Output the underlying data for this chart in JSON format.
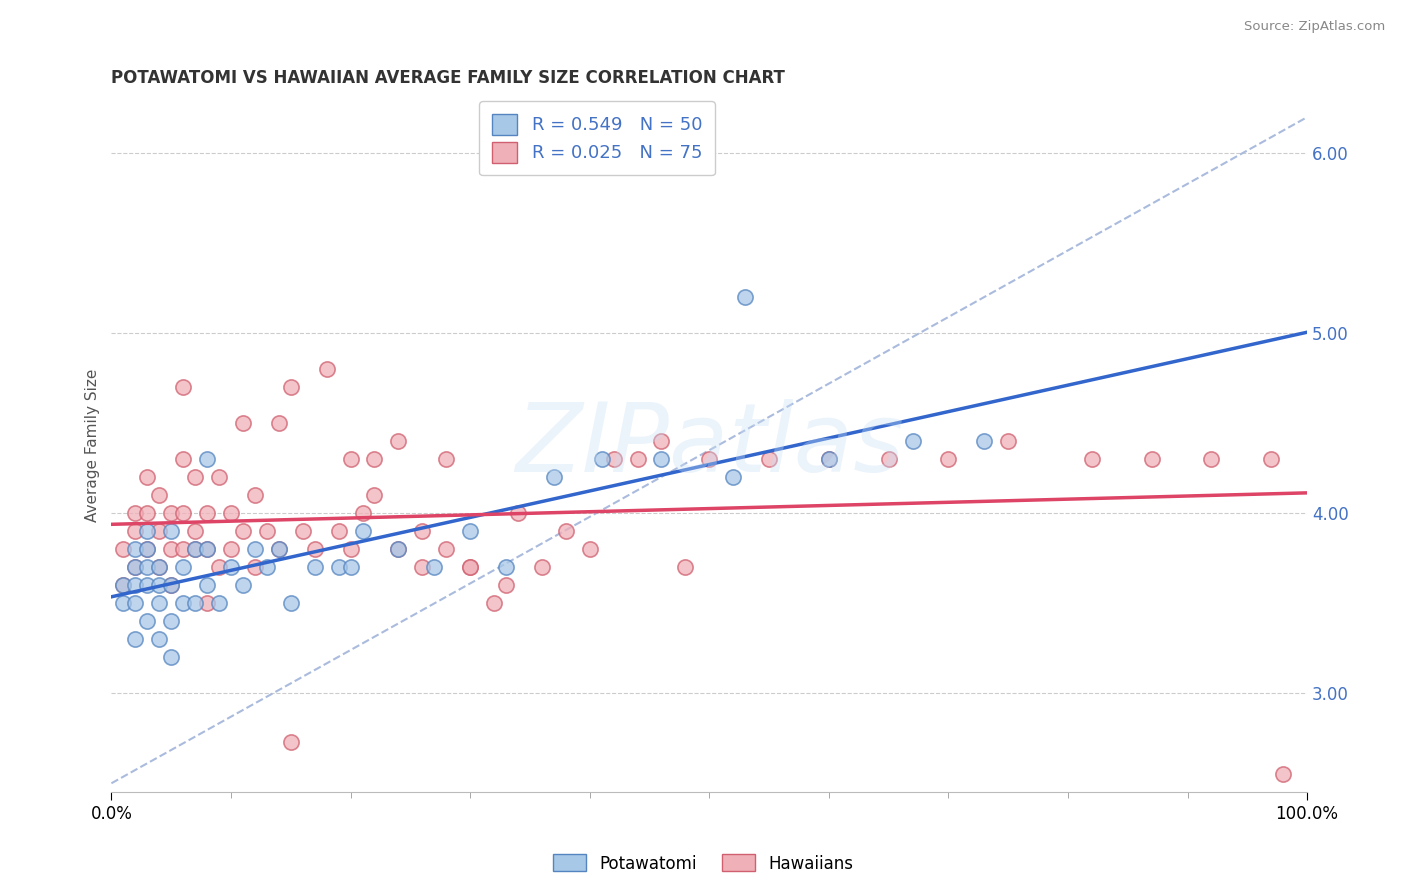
{
  "title": "POTAWATOMI VS HAWAIIAN AVERAGE FAMILY SIZE CORRELATION CHART",
  "source": "Source: ZipAtlas.com",
  "ylabel": "Average Family Size",
  "yticks": [
    3.0,
    4.0,
    5.0,
    6.0
  ],
  "ytick_labels": [
    "3.00",
    "4.00",
    "5.00",
    "6.00"
  ],
  "xlim": [
    0.0,
    1.0
  ],
  "ylim": [
    2.45,
    6.3
  ],
  "r_potawatomi": "0.549",
  "n_potawatomi": "50",
  "r_hawaiian": "0.025",
  "n_hawaiian": "75",
  "legend_labels": [
    "Potawatomi",
    "Hawaiians"
  ],
  "color_potawatomi_fill": "#a8c8e8",
  "color_potawatomi_edge": "#5585c0",
  "color_hawaiian_fill": "#f0b0b8",
  "color_hawaiian_edge": "#d06070",
  "color_trendline_potawatomi": "#3366cc",
  "color_trendline_hawaiian": "#dd4466",
  "color_diagonal": "#aabbdd",
  "color_grid": "#cccccc",
  "color_title": "#333333",
  "color_source": "#888888",
  "color_axis_blue": "#4472c4",
  "background_color": "#ffffff",
  "legend_patch_blue": "#a8c8e8",
  "legend_patch_pink": "#f0b0b8",
  "legend_patch_blue_edge": "#5585c0",
  "legend_patch_pink_edge": "#d06070",
  "potawatomi_x": [
    0.01,
    0.01,
    0.02,
    0.02,
    0.02,
    0.02,
    0.02,
    0.03,
    0.03,
    0.03,
    0.03,
    0.03,
    0.04,
    0.04,
    0.04,
    0.04,
    0.05,
    0.05,
    0.05,
    0.05,
    0.06,
    0.06,
    0.07,
    0.07,
    0.08,
    0.08,
    0.09,
    0.1,
    0.11,
    0.12,
    0.13,
    0.14,
    0.15,
    0.17,
    0.19,
    0.21,
    0.24,
    0.27,
    0.3,
    0.33,
    0.37,
    0.41,
    0.46,
    0.52,
    0.53,
    0.6,
    0.67,
    0.73,
    0.08,
    0.2
  ],
  "potawatomi_y": [
    3.5,
    3.6,
    3.3,
    3.5,
    3.6,
    3.7,
    3.8,
    3.4,
    3.6,
    3.7,
    3.8,
    3.9,
    3.3,
    3.5,
    3.6,
    3.7,
    3.2,
    3.4,
    3.6,
    3.9,
    3.5,
    3.7,
    3.5,
    3.8,
    3.6,
    3.8,
    3.5,
    3.7,
    3.6,
    3.8,
    3.7,
    3.8,
    3.5,
    3.7,
    3.7,
    3.9,
    3.8,
    3.7,
    3.9,
    3.7,
    4.2,
    4.3,
    4.3,
    4.2,
    5.2,
    4.3,
    4.4,
    4.4,
    4.3,
    3.7
  ],
  "hawaiian_x": [
    0.01,
    0.01,
    0.02,
    0.02,
    0.02,
    0.03,
    0.03,
    0.03,
    0.04,
    0.04,
    0.04,
    0.05,
    0.05,
    0.05,
    0.06,
    0.06,
    0.06,
    0.07,
    0.07,
    0.07,
    0.08,
    0.08,
    0.09,
    0.09,
    0.1,
    0.1,
    0.11,
    0.11,
    0.12,
    0.12,
    0.13,
    0.14,
    0.14,
    0.15,
    0.16,
    0.17,
    0.18,
    0.19,
    0.2,
    0.21,
    0.22,
    0.24,
    0.26,
    0.28,
    0.3,
    0.33,
    0.36,
    0.4,
    0.44,
    0.48,
    0.2,
    0.22,
    0.24,
    0.26,
    0.28,
    0.3,
    0.34,
    0.38,
    0.42,
    0.46,
    0.5,
    0.55,
    0.6,
    0.65,
    0.7,
    0.75,
    0.82,
    0.87,
    0.92,
    0.97,
    0.98,
    0.32,
    0.15,
    0.08,
    0.06
  ],
  "hawaiian_y": [
    3.6,
    3.8,
    3.7,
    3.9,
    4.0,
    3.8,
    4.0,
    4.2,
    3.7,
    3.9,
    4.1,
    3.8,
    4.0,
    3.6,
    3.8,
    4.0,
    4.3,
    3.8,
    3.9,
    4.2,
    3.8,
    4.0,
    3.7,
    4.2,
    3.8,
    4.0,
    4.5,
    3.9,
    4.1,
    3.7,
    3.9,
    4.5,
    3.8,
    4.7,
    3.9,
    3.8,
    4.8,
    3.9,
    3.8,
    4.0,
    4.3,
    3.8,
    3.9,
    3.8,
    3.7,
    3.6,
    3.7,
    3.8,
    4.3,
    3.7,
    4.3,
    4.1,
    4.4,
    3.7,
    4.3,
    3.7,
    4.0,
    3.9,
    4.3,
    4.4,
    4.3,
    4.3,
    4.3,
    4.3,
    4.3,
    4.4,
    4.3,
    4.3,
    4.3,
    4.3,
    2.55,
    3.5,
    2.73,
    3.5,
    4.7
  ]
}
